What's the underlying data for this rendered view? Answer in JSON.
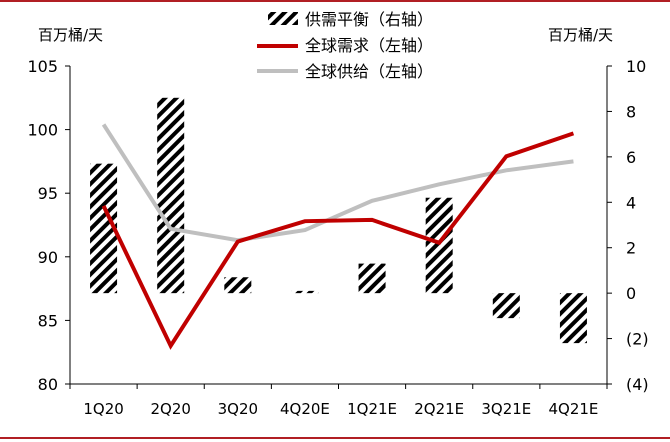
{
  "chart_data": {
    "type": "bar",
    "left_axis_unit": "百万桶/天",
    "right_axis_unit": "百万桶/天",
    "categories": [
      "1Q20",
      "2Q20",
      "3Q20",
      "4Q20E",
      "1Q21E",
      "2Q21E",
      "3Q21E",
      "4Q21E"
    ],
    "left_axis": {
      "ylim": [
        80,
        105
      ],
      "ticks": [
        "80",
        "85",
        "90",
        "95",
        "100",
        "105"
      ]
    },
    "right_axis": {
      "ylim": [
        -4,
        10
      ],
      "ticks": [
        "(4)",
        "(2)",
        "0",
        "2",
        "4",
        "6",
        "8",
        "10"
      ],
      "negative_tick_color": "#c00000"
    },
    "series": [
      {
        "name": "供需平衡（右轴）",
        "kind": "bar",
        "axis": "right",
        "pattern": "diagonal-hatch",
        "values": [
          5.7,
          8.6,
          0.7,
          0.1,
          1.3,
          4.2,
          -1.1,
          -2.2
        ]
      },
      {
        "name": "全球需求（左轴）",
        "kind": "line",
        "axis": "left",
        "color": "#c00000",
        "values": [
          94.0,
          83.0,
          91.2,
          92.8,
          92.9,
          91.1,
          97.9,
          99.7
        ]
      },
      {
        "name": "全球供给（左轴）",
        "kind": "line",
        "axis": "left",
        "color": "#bfbfbf",
        "values": [
          100.4,
          92.2,
          91.3,
          92.1,
          94.4,
          95.7,
          96.8,
          97.5
        ]
      }
    ],
    "legend_position": "top-center",
    "grid": false
  }
}
